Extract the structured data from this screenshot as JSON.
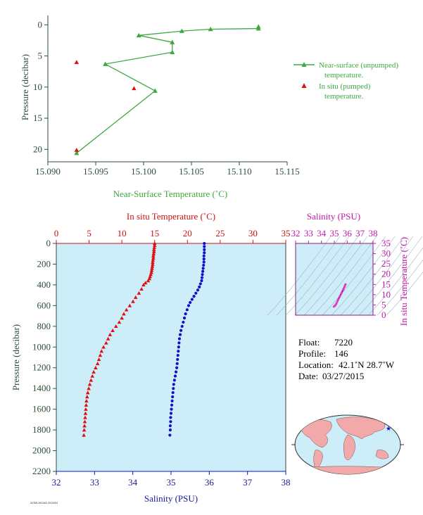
{
  "colors": {
    "near_surface": "#3fa83f",
    "in_situ_temp": "#dd1111",
    "salinity": "#1111cc",
    "ts_diagram": "#c01aa8",
    "plot_background": "#cdeef9",
    "axis_dark": "#2e4d36",
    "map_land": "#f1a9a9",
    "map_ocean": "#cdeef9"
  },
  "top_panel": {
    "xlabel": "Near-Surface Temperature (˚C)",
    "ylabel": "Pressure (decibar)",
    "legend": {
      "near_surface_line1": "Near-surface (unpumped)",
      "near_surface_line2": "temperature.",
      "in_situ_line1": "In situ (pumped)",
      "in_situ_line2": "temperature."
    }
  },
  "main_panel": {
    "top_axis_label": "In situ Temperature (˚C)",
    "bottom_axis_label": "Salinity (PSU)",
    "ylabel": "Pressure (decibar)"
  },
  "ts_panel": {
    "top_label": "Salinity (PSU)",
    "right_label": "In situ Temperature (˚C)"
  },
  "info": {
    "float_label": "Float:",
    "float_value": "7220",
    "profile_label": "Profile:",
    "profile_value": "146",
    "location_label": "Location:",
    "location_value": "42.1˚N 28.7˚W",
    "date_label": "Date:",
    "date_value": "03/27/2015"
  },
  "footer_text": "AOML/NOAA 2015/04",
  "map": {
    "marker_icon": "star-icon",
    "lat": 42.1,
    "lon": -28.7
  },
  "chart_data": [
    {
      "type": "line",
      "id": "near_surface_temperature",
      "xlabel": "Near-Surface Temperature (˚C)",
      "ylabel": "Pressure (decibar)",
      "xlim": [
        15.09,
        15.115
      ],
      "ylim": [
        22,
        -1.5
      ],
      "xticks": [
        15.09,
        15.095,
        15.1,
        15.105,
        15.11,
        15.115
      ],
      "yticks": [
        0,
        5,
        10,
        15,
        20
      ],
      "series": [
        {
          "name": "Near-surface (unpumped) temperature.",
          "marker": "triangle",
          "points": [
            [
              15.112,
              0.3
            ],
            [
              15.112,
              0.6
            ],
            [
              15.107,
              0.7
            ],
            [
              15.104,
              1.0
            ],
            [
              15.0995,
              1.7
            ],
            [
              15.103,
              2.8
            ],
            [
              15.103,
              4.4
            ],
            [
              15.096,
              6.3
            ],
            [
              15.1012,
              10.6
            ],
            [
              15.093,
              20.6
            ]
          ]
        },
        {
          "name": "In situ (pumped) temperature.",
          "marker": "triangle",
          "points": [
            [
              15.093,
              6.0
            ],
            [
              15.099,
              10.2
            ],
            [
              15.093,
              20.1
            ]
          ]
        }
      ]
    },
    {
      "type": "scatter",
      "id": "depth_profile",
      "ylabel": "Pressure (decibar)",
      "ylim": [
        2200,
        0
      ],
      "yticks": [
        0,
        200,
        400,
        600,
        800,
        1000,
        1200,
        1400,
        1600,
        1800,
        2000,
        2200
      ],
      "temperature_axis": {
        "label": "In situ Temperature (˚C)",
        "range": [
          0,
          35
        ],
        "ticks": [
          0,
          5,
          10,
          15,
          20,
          25,
          30,
          35
        ]
      },
      "salinity_axis": {
        "label": "Salinity (PSU)",
        "range": [
          32,
          38
        ],
        "ticks": [
          32,
          33,
          34,
          35,
          36,
          37,
          38
        ]
      },
      "series": [
        {
          "name": "In situ Temperature",
          "marker": "triangle",
          "points": [
            [
              15.0,
              0
            ],
            [
              15.0,
              20
            ],
            [
              14.95,
              40
            ],
            [
              14.9,
              60
            ],
            [
              14.9,
              80
            ],
            [
              14.85,
              100
            ],
            [
              14.8,
              120
            ],
            [
              14.8,
              140
            ],
            [
              14.75,
              160
            ],
            [
              14.7,
              180
            ],
            [
              14.7,
              200
            ],
            [
              14.65,
              220
            ],
            [
              14.6,
              240
            ],
            [
              14.55,
              260
            ],
            [
              14.5,
              280
            ],
            [
              14.4,
              300
            ],
            [
              14.3,
              320
            ],
            [
              14.2,
              340
            ],
            [
              14.0,
              360
            ],
            [
              13.6,
              380
            ],
            [
              13.3,
              400
            ],
            [
              13.0,
              440
            ],
            [
              12.6,
              480
            ],
            [
              12.1,
              520
            ],
            [
              11.7,
              560
            ],
            [
              11.2,
              600
            ],
            [
              10.7,
              640
            ],
            [
              10.3,
              680
            ],
            [
              10.0,
              720
            ],
            [
              9.6,
              760
            ],
            [
              9.1,
              800
            ],
            [
              8.6,
              840
            ],
            [
              8.2,
              880
            ],
            [
              7.9,
              920
            ],
            [
              7.6,
              960
            ],
            [
              7.2,
              1000
            ],
            [
              6.9,
              1040
            ],
            [
              6.7,
              1080
            ],
            [
              6.5,
              1120
            ],
            [
              6.3,
              1160
            ],
            [
              6.0,
              1200
            ],
            [
              5.7,
              1240
            ],
            [
              5.5,
              1280
            ],
            [
              5.3,
              1320
            ],
            [
              5.1,
              1360
            ],
            [
              4.95,
              1400
            ],
            [
              4.8,
              1440
            ],
            [
              4.7,
              1480
            ],
            [
              4.6,
              1520
            ],
            [
              4.55,
              1560
            ],
            [
              4.5,
              1600
            ],
            [
              4.45,
              1640
            ],
            [
              4.4,
              1680
            ],
            [
              4.35,
              1720
            ],
            [
              4.3,
              1760
            ],
            [
              4.25,
              1800
            ],
            [
              4.2,
              1850
            ]
          ]
        },
        {
          "name": "Salinity",
          "marker": "circle",
          "points": [
            [
              35.87,
              0
            ],
            [
              35.87,
              30
            ],
            [
              35.87,
              60
            ],
            [
              35.87,
              90
            ],
            [
              35.86,
              120
            ],
            [
              35.86,
              150
            ],
            [
              35.86,
              180
            ],
            [
              35.85,
              210
            ],
            [
              35.84,
              240
            ],
            [
              35.83,
              270
            ],
            [
              35.82,
              300
            ],
            [
              35.81,
              330
            ],
            [
              35.8,
              360
            ],
            [
              35.77,
              390
            ],
            [
              35.74,
              420
            ],
            [
              35.7,
              450
            ],
            [
              35.65,
              480
            ],
            [
              35.6,
              510
            ],
            [
              35.55,
              540
            ],
            [
              35.5,
              570
            ],
            [
              35.46,
              600
            ],
            [
              35.42,
              640
            ],
            [
              35.38,
              680
            ],
            [
              35.35,
              720
            ],
            [
              35.32,
              760
            ],
            [
              35.29,
              800
            ],
            [
              35.26,
              840
            ],
            [
              35.24,
              880
            ],
            [
              35.22,
              920
            ],
            [
              35.21,
              960
            ],
            [
              35.2,
              1000
            ],
            [
              35.19,
              1040
            ],
            [
              35.18,
              1080
            ],
            [
              35.17,
              1120
            ],
            [
              35.16,
              1160
            ],
            [
              35.15,
              1200
            ],
            [
              35.13,
              1240
            ],
            [
              35.11,
              1280
            ],
            [
              35.09,
              1320
            ],
            [
              35.07,
              1360
            ],
            [
              35.06,
              1400
            ],
            [
              35.05,
              1440
            ],
            [
              35.04,
              1480
            ],
            [
              35.03,
              1520
            ],
            [
              35.02,
              1560
            ],
            [
              35.01,
              1600
            ],
            [
              35.0,
              1640
            ],
            [
              34.99,
              1680
            ],
            [
              34.99,
              1720
            ],
            [
              34.98,
              1760
            ],
            [
              34.98,
              1800
            ],
            [
              34.97,
              1850
            ]
          ]
        }
      ]
    },
    {
      "type": "scatter",
      "id": "ts_diagram",
      "xlabel": "Salinity (PSU)",
      "ylabel": "In situ Temperature (˚C)",
      "xlim": [
        32,
        38
      ],
      "ylim": [
        0,
        35
      ],
      "xticks": [
        32,
        33,
        34,
        35,
        36,
        37,
        38
      ],
      "yticks": [
        0,
        5,
        10,
        15,
        20,
        25,
        30,
        35
      ],
      "series": [
        {
          "name": "T-S",
          "points": [
            [
              35.87,
              15.0
            ],
            [
              35.84,
              14.7
            ],
            [
              35.8,
              14.0
            ],
            [
              35.7,
              12.6
            ],
            [
              35.55,
              10.7
            ],
            [
              35.42,
              9.1
            ],
            [
              35.3,
              7.6
            ],
            [
              35.22,
              6.5
            ],
            [
              35.15,
              5.5
            ],
            [
              35.08,
              4.8
            ],
            [
              35.02,
              4.5
            ],
            [
              34.97,
              4.2
            ]
          ]
        }
      ]
    }
  ]
}
